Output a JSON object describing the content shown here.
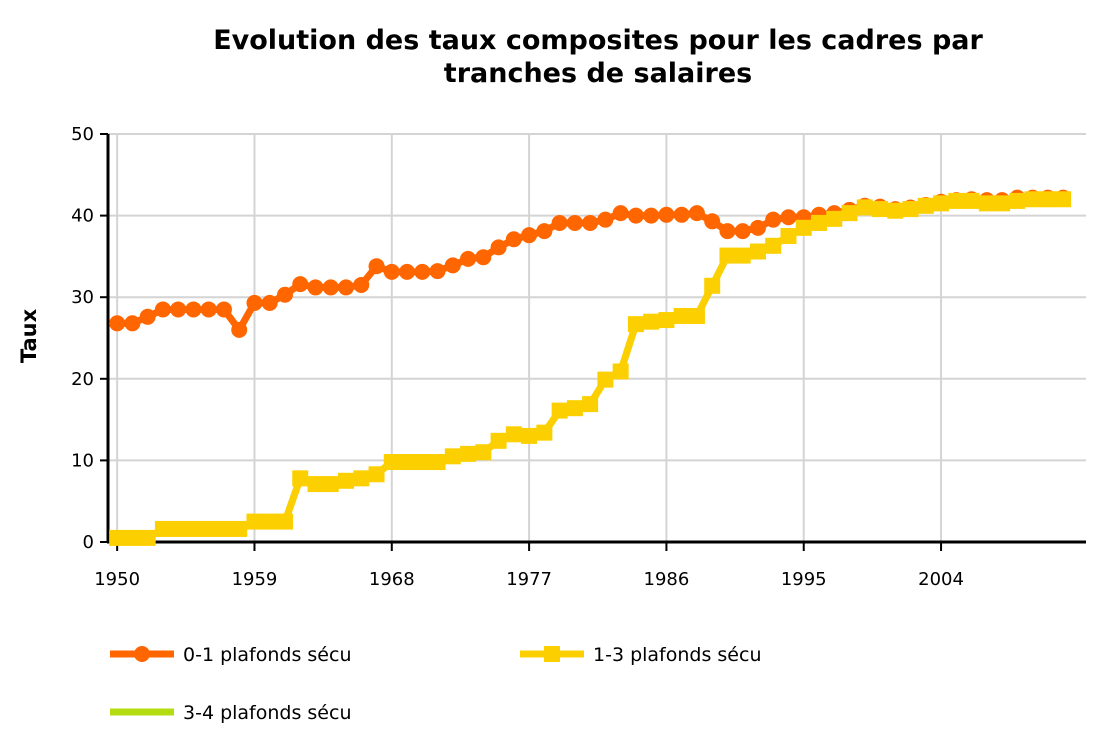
{
  "chart_data": {
    "type": "line",
    "title": [
      "Evolution des taux composites pour les cadres par",
      "tranches de salaires"
    ],
    "xlabel": "",
    "ylabel": "Taux",
    "xlim": [
      1949.4,
      2013.5
    ],
    "ylim": [
      0,
      50
    ],
    "xticks": [
      "1950",
      "1959",
      "1968",
      "1977",
      "1986",
      "1995",
      "2004"
    ],
    "yticks": [
      "0",
      "10",
      "20",
      "30",
      "40",
      "50"
    ],
    "grid": true,
    "legend_position": "bottom",
    "x": [
      1950,
      1951,
      1952,
      1953,
      1954,
      1955,
      1956,
      1957,
      1958,
      1959,
      1960,
      1961,
      1962,
      1963,
      1964,
      1965,
      1966,
      1967,
      1968,
      1969,
      1970,
      1971,
      1972,
      1973,
      1974,
      1975,
      1976,
      1977,
      1978,
      1979,
      1980,
      1981,
      1982,
      1983,
      1984,
      1985,
      1986,
      1987,
      1988,
      1989,
      1990,
      1991,
      1992,
      1993,
      1994,
      1995,
      1996,
      1997,
      1998,
      1999,
      2000,
      2001,
      2002,
      2003,
      2004,
      2005,
      2006,
      2007,
      2008,
      2009,
      2010,
      2011,
      2012
    ],
    "series": [
      {
        "name": "3-4 plafonds sécu",
        "color": "#b5dc10",
        "marker": "none",
        "values": [
          0.5,
          0.5,
          0.5,
          1.6,
          1.6,
          1.6,
          1.6,
          1.6,
          1.6,
          2.5,
          2.5,
          2.5,
          7.8,
          7.1,
          7.1,
          7.5,
          7.8,
          8.3,
          9.8,
          9.8,
          9.8,
          9.8,
          10.5,
          10.8,
          11.0,
          12.4,
          13.2,
          13.0,
          13.4,
          16.1,
          16.4,
          16.9,
          19.9,
          20.9,
          26.7,
          27.0,
          27.2,
          27.7,
          27.7,
          31.4,
          35.1,
          35.1,
          35.6,
          36.3,
          37.5,
          38.5,
          39.1,
          39.6,
          40.3,
          41.0,
          40.8,
          40.6,
          40.8,
          41.2,
          41.5,
          41.8,
          41.8,
          41.5,
          41.5,
          41.8,
          42.0,
          42.0,
          42.0
        ]
      },
      {
        "name": "0-1 plafonds sécu",
        "color": "#ff6600",
        "marker": "circle",
        "values": [
          26.8,
          26.8,
          27.6,
          28.5,
          28.5,
          28.5,
          28.5,
          28.5,
          26.0,
          29.3,
          29.3,
          30.3,
          31.6,
          31.2,
          31.2,
          31.2,
          31.5,
          33.8,
          33.1,
          33.1,
          33.1,
          33.2,
          33.9,
          34.7,
          34.9,
          36.1,
          37.1,
          37.6,
          38.1,
          39.1,
          39.1,
          39.1,
          39.5,
          40.3,
          40.0,
          40.0,
          40.1,
          40.1,
          40.3,
          39.3,
          38.1,
          38.1,
          38.5,
          39.5,
          39.8,
          39.8,
          40.1,
          40.3,
          40.7,
          41.2,
          41.1,
          40.8,
          41.0,
          41.3,
          41.7,
          41.9,
          42.0,
          41.9,
          41.9,
          42.2,
          42.2,
          42.2,
          42.2
        ]
      },
      {
        "name": "1-3 plafonds sécu",
        "color": "#fcd000",
        "marker": "square",
        "values": [
          0.5,
          0.5,
          0.5,
          1.6,
          1.6,
          1.6,
          1.6,
          1.6,
          1.6,
          2.5,
          2.5,
          2.5,
          7.8,
          7.1,
          7.1,
          7.5,
          7.8,
          8.3,
          9.8,
          9.8,
          9.8,
          9.8,
          10.5,
          10.8,
          11.0,
          12.4,
          13.2,
          13.0,
          13.4,
          16.1,
          16.4,
          16.9,
          19.9,
          20.9,
          26.7,
          27.0,
          27.2,
          27.7,
          27.7,
          31.4,
          35.1,
          35.1,
          35.6,
          36.3,
          37.5,
          38.5,
          39.1,
          39.6,
          40.3,
          41.0,
          40.8,
          40.6,
          40.8,
          41.2,
          41.5,
          41.8,
          41.8,
          41.5,
          41.5,
          41.8,
          42.0,
          42.0,
          42.0
        ]
      }
    ],
    "legend_order": [
      1,
      2,
      0
    ]
  }
}
